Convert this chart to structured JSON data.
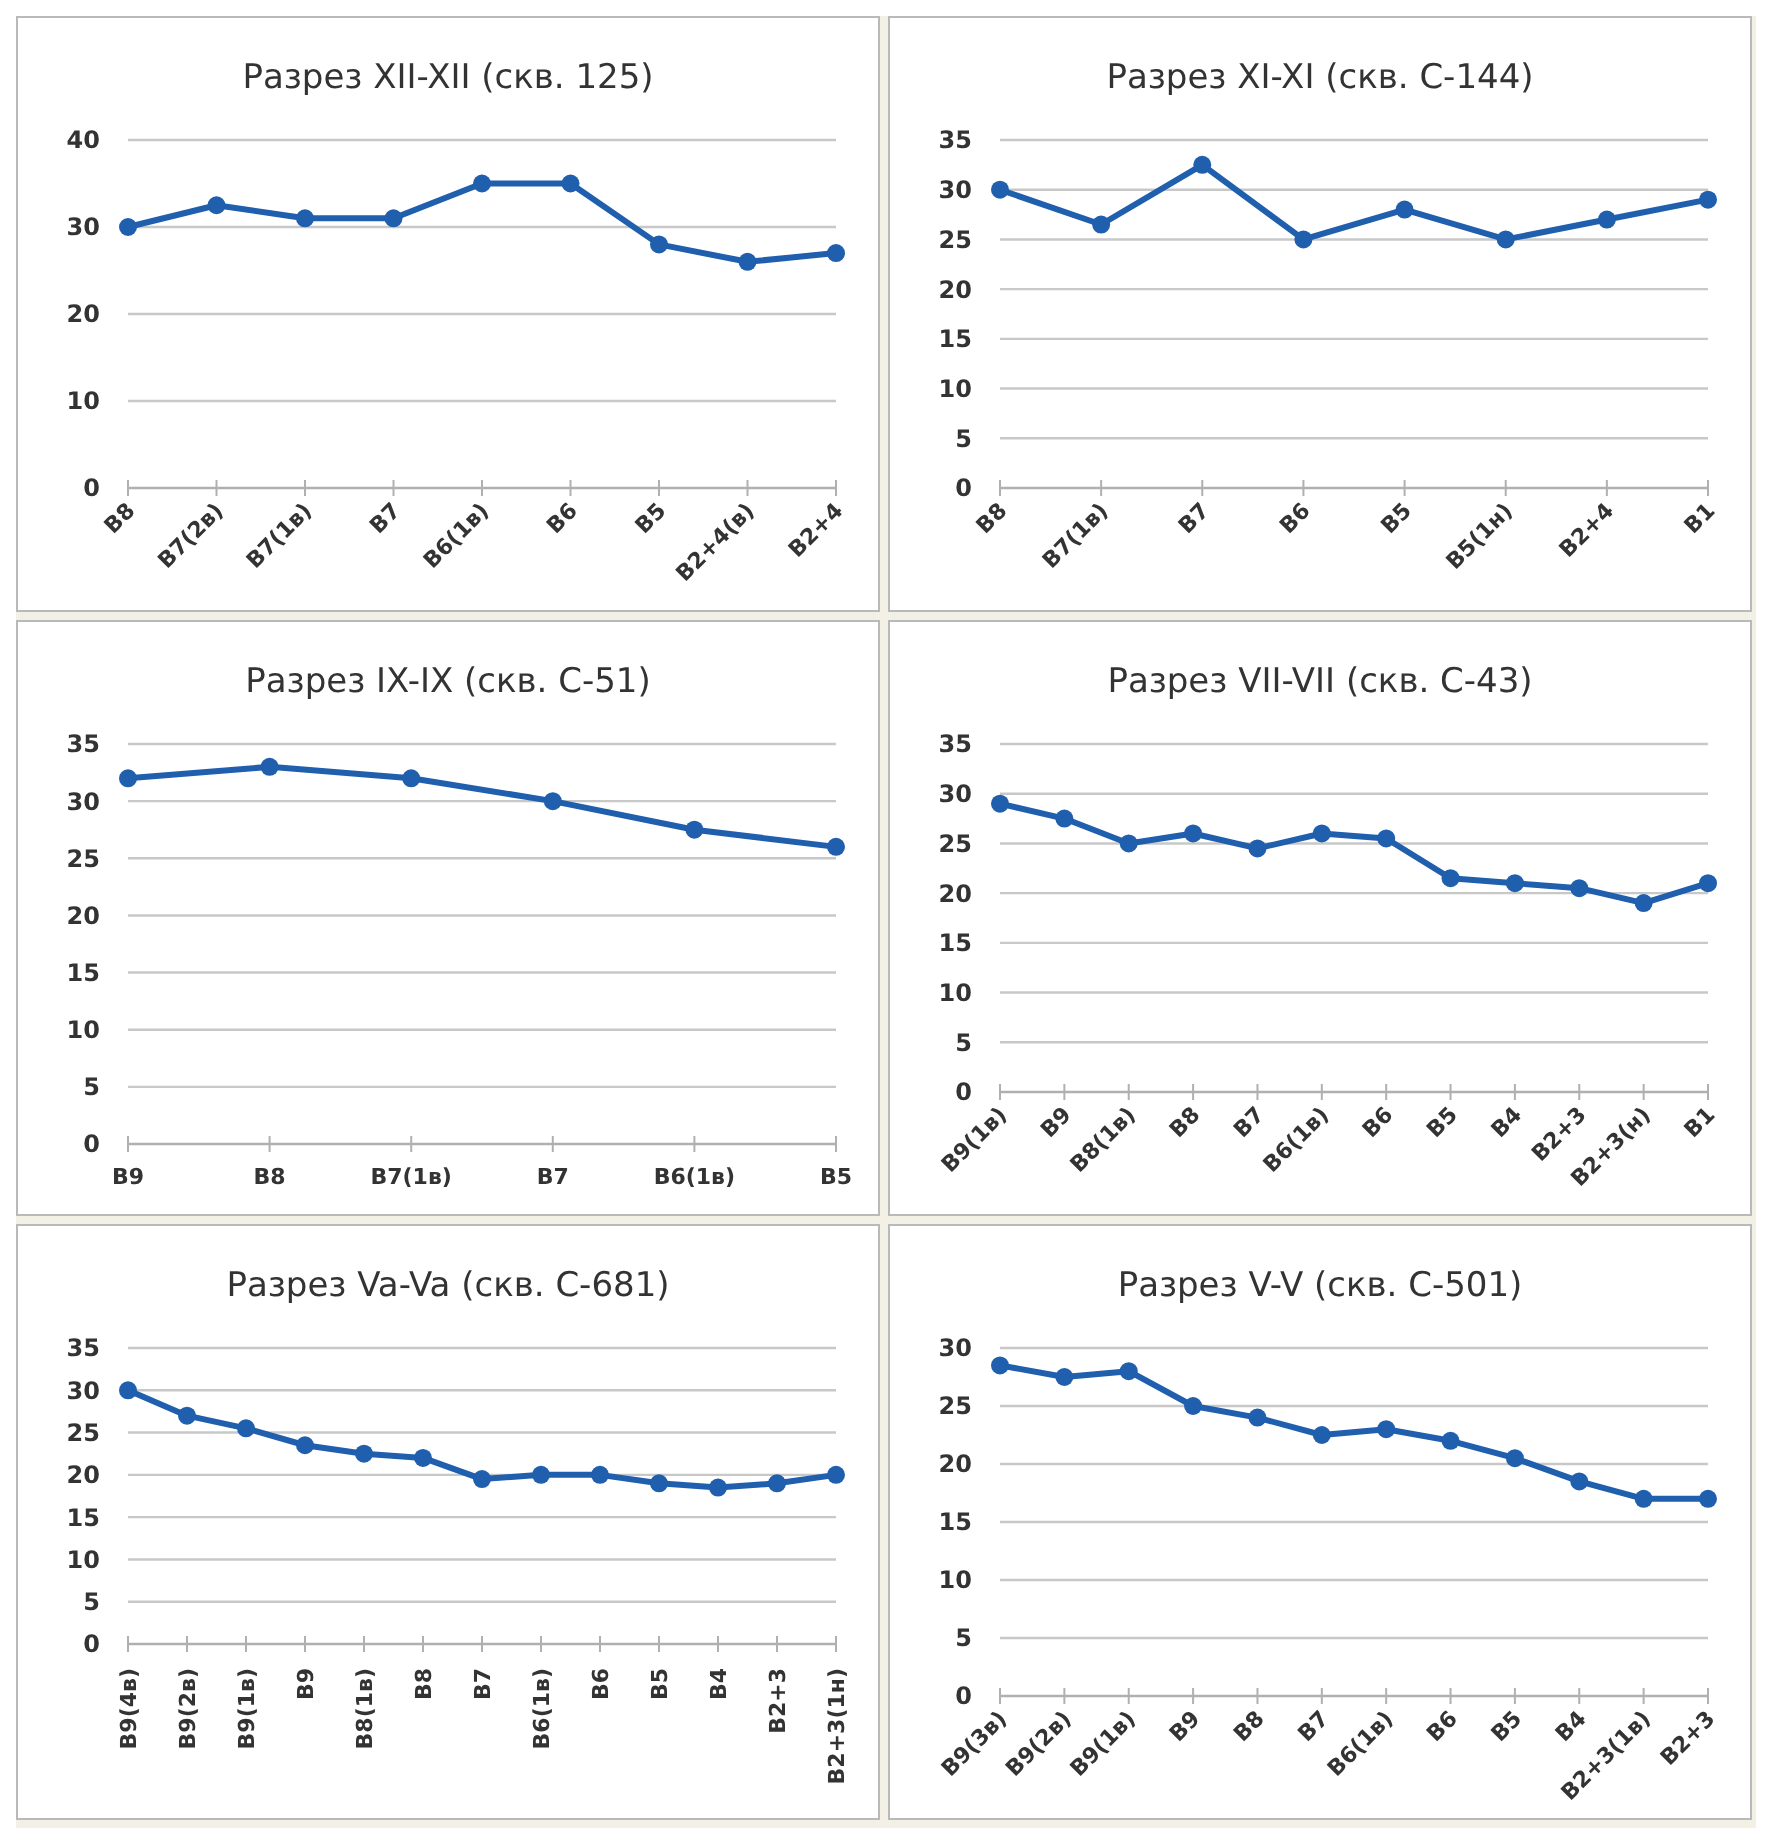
{
  "chart_data": [
    {
      "type": "line",
      "title": "Разрез XII-XII (скв. 125)",
      "categories": [
        "В8",
        "В7(2в)",
        "В7(1в)",
        "В7",
        "В6(1в)",
        "В6",
        "В5",
        "В2+4(в)",
        "В2+4"
      ],
      "series": [
        {
          "color": "#1f5fad",
          "values": [
            30,
            32.5,
            31,
            31,
            35,
            35,
            28,
            26,
            27
          ]
        }
      ],
      "ylim": [
        0,
        40
      ],
      "yticks": [
        0,
        10,
        20,
        30,
        40
      ],
      "grid": "y",
      "marker": "circle"
    },
    {
      "type": "line",
      "title": "Разрез XI-XI (скв. С-144)",
      "categories": [
        "В8",
        "В7(1в)",
        "В7",
        "В6",
        "В5",
        "В5(1н)",
        "В2+4",
        "В1"
      ],
      "series": [
        {
          "color": "#1f5fad",
          "values": [
            30,
            26.5,
            32.5,
            25,
            28,
            25,
            27,
            29
          ]
        }
      ],
      "ylim": [
        0,
        35
      ],
      "yticks": [
        0,
        5,
        10,
        15,
        20,
        25,
        30,
        35
      ],
      "grid": "y",
      "marker": "circle"
    },
    {
      "type": "line",
      "title": "Разрез IX-IX (скв. С-51)",
      "categories": [
        "В9",
        "В8",
        "В7(1в)",
        "В7",
        "В6(1в)",
        "В5"
      ],
      "series": [
        {
          "color": "#1f5fad",
          "values": [
            32,
            33,
            32,
            30,
            27.5,
            26
          ]
        }
      ],
      "ylim": [
        0,
        35
      ],
      "yticks": [
        0,
        5,
        10,
        15,
        20,
        25,
        30,
        35
      ],
      "grid": "y",
      "marker": "circle"
    },
    {
      "type": "line",
      "title": "Разрез VII-VII (скв. С-43)",
      "categories": [
        "В9(1в)",
        "В9",
        "В8(1в)",
        "В8",
        "В7",
        "В6(1в)",
        "В6",
        "В5",
        "В4",
        "В2+3",
        "В2+3(н)",
        "В1"
      ],
      "series": [
        {
          "color": "#1f5fad",
          "values": [
            29,
            27.5,
            25,
            26,
            24.5,
            26,
            25.5,
            21.5,
            21,
            20.5,
            19,
            21
          ]
        }
      ],
      "ylim": [
        0,
        35
      ],
      "yticks": [
        0,
        5,
        10,
        15,
        20,
        25,
        30,
        35
      ],
      "grid": "y",
      "marker": "circle"
    },
    {
      "type": "line",
      "title": "Разрез Va-Va (скв. С-681)",
      "categories": [
        "В9(4в)",
        "В9(2в)",
        "В9(1в)",
        "В9",
        "В8(1в)",
        "В8",
        "В7",
        "В6(1в)",
        "В6",
        "В5",
        "В4",
        "В2+3",
        "В2+3(1н)"
      ],
      "series": [
        {
          "color": "#1f5fad",
          "values": [
            30,
            27,
            25.5,
            23.5,
            22.5,
            22,
            19.5,
            20,
            20,
            19,
            18.5,
            19,
            20
          ]
        }
      ],
      "ylim": [
        0,
        35
      ],
      "yticks": [
        0,
        5,
        10,
        15,
        20,
        25,
        30,
        35
      ],
      "grid": "y",
      "marker": "circle"
    },
    {
      "type": "line",
      "title": "Разрез V-V (скв. С-501)",
      "categories": [
        "В9(3в)",
        "В9(2в)",
        "В9(1в)",
        "В9",
        "В8",
        "В7",
        "В6(1в)",
        "В6",
        "В5",
        "В4",
        "В2+3(1в)",
        "В2+3"
      ],
      "series": [
        {
          "color": "#1f5fad",
          "values": [
            28.5,
            27.5,
            28,
            25,
            24,
            22.5,
            23,
            22,
            20.5,
            18.5,
            17,
            17
          ]
        }
      ],
      "ylim": [
        0,
        30
      ],
      "yticks": [
        0,
        5,
        10,
        15,
        20,
        25,
        30
      ],
      "grid": "y",
      "marker": "circle"
    }
  ]
}
